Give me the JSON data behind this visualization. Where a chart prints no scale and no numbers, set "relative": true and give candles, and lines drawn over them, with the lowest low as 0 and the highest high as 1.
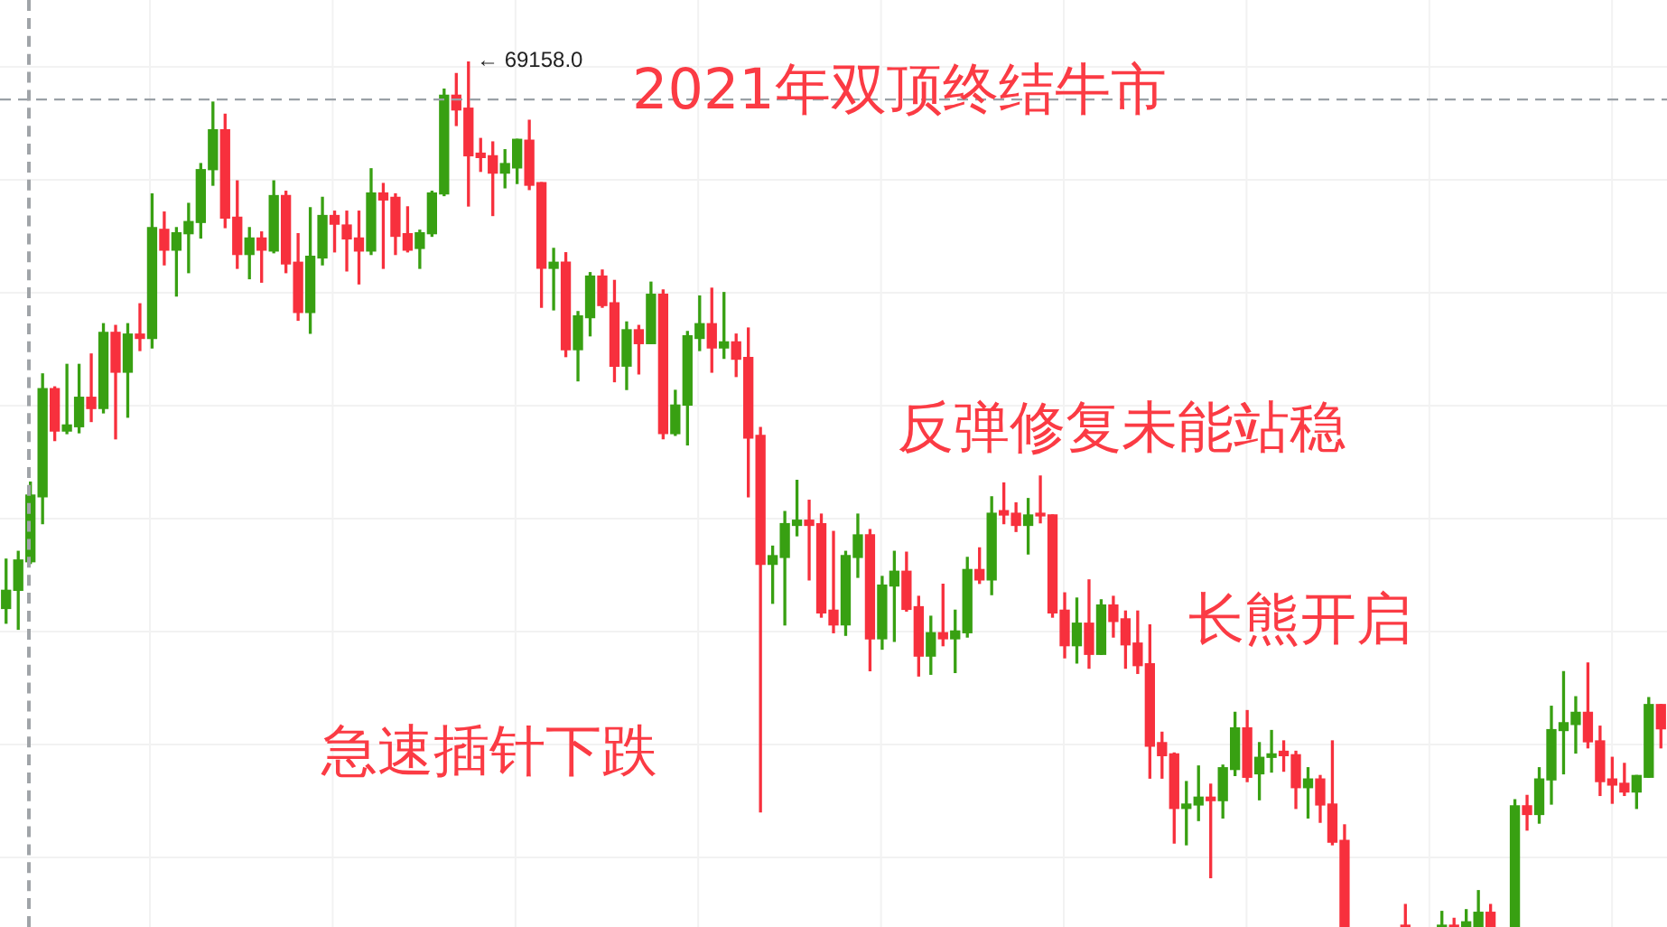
{
  "chart_data": {
    "type": "candlestick",
    "relative": true,
    "categories": [
      null,
      null,
      null,
      null,
      null,
      null,
      null,
      null,
      null,
      null,
      null,
      null,
      null,
      null,
      null,
      null,
      null,
      null,
      null,
      null,
      null,
      null,
      null,
      null,
      null,
      null,
      null,
      null,
      null,
      null,
      null,
      null,
      null,
      null,
      null,
      null,
      null,
      null,
      null,
      null,
      null,
      null,
      null,
      null,
      null,
      null,
      null,
      null,
      null,
      null,
      null,
      null,
      null,
      null,
      null,
      null,
      null,
      null,
      null,
      null,
      null,
      null,
      null,
      null,
      null,
      null,
      null,
      null,
      null,
      null,
      null,
      null,
      null,
      null,
      null,
      null,
      null,
      null,
      null,
      null,
      null,
      null,
      null,
      null,
      null,
      null,
      null,
      null,
      null,
      null,
      null,
      null,
      null,
      null,
      null,
      null,
      null,
      null,
      null,
      null,
      null,
      null,
      null,
      null,
      null,
      null,
      null,
      null,
      null,
      null,
      null,
      null,
      null,
      null,
      null,
      null,
      null,
      null,
      null,
      null,
      null,
      null,
      null,
      null,
      null,
      null,
      null,
      null,
      null,
      null,
      null,
      null,
      null,
      null,
      null,
      null,
      null
    ],
    "colors": [
      "#38a012",
      "#38a012",
      "#38a012",
      "#38a012",
      "#f7303d",
      "#38a012",
      "#38a012",
      "#f7303d",
      "#38a012",
      "#f7303d",
      "#38a012",
      "#f7303d",
      "#38a012",
      "#f7303d",
      "#38a012",
      "#38a012",
      "#38a012",
      "#38a012",
      "#f7303d",
      "#f7303d",
      "#38a012",
      "#f7303d",
      "#38a012",
      "#f7303d",
      "#f7303d",
      "#38a012",
      "#38a012",
      "#f7303d",
      "#f7303d",
      "#f7303d",
      "#38a012",
      "#f7303d",
      "#f7303d",
      "#f7303d",
      "#38a012",
      "#38a012",
      "#38a012",
      "#f7303d",
      "#f7303d",
      "#f7303d",
      "#f7303d",
      "#38a012",
      "#38a012",
      "#f7303d",
      "#f7303d",
      "#38a012",
      "#f7303d",
      "#38a012",
      "#38a012",
      "#f7303d",
      "#f7303d",
      "#38a012",
      "#f7303d",
      "#38a012",
      "#f7303d",
      "#38a012",
      "#38a012",
      "#38a012",
      "#f7303d",
      "#38a012",
      "#f7303d",
      "#f7303d",
      "#f7303d",
      "#38a012",
      "#38a012",
      "#38a012",
      "#f7303d",
      "#f7303d",
      "#f7303d",
      "#38a012",
      "#38a012",
      "#f7303d",
      "#38a012",
      "#38a012",
      "#f7303d",
      "#f7303d",
      "#38a012",
      "#f7303d",
      "#38a012",
      "#38a012",
      "#f7303d",
      "#38a012",
      "#f7303d",
      "#f7303d",
      "#38a012",
      "#f7303d",
      "#f7303d",
      "#f7303d",
      "#38a012",
      "#f7303d",
      "#38a012",
      "#f7303d",
      "#f7303d",
      "#f7303d",
      "#f7303d",
      "#f7303d",
      "#f7303d",
      "#38a012",
      "#38a012",
      "#f7303d",
      "#38a012",
      "#38a012",
      "#f7303d",
      "#38a012",
      "#38a012",
      "#f7303d",
      "#f7303d",
      "#38a012",
      "#f7303d",
      "#f7303d",
      "#f7303d",
      null,
      null,
      null,
      null,
      "#f7303d",
      null,
      null,
      "#38a012",
      "#f7303d",
      "#38a012",
      "#38a012",
      "#f7303d",
      null,
      "#38a012",
      "#f7303d",
      "#38a012",
      "#38a012",
      "#38a012",
      "#38a012",
      "#f7303d",
      "#f7303d",
      "#f7303d",
      "#f7303d",
      "#38a012",
      "#38a012",
      "#f7303d"
    ],
    "ohlc": [
      [
        0.368,
        0.425,
        0.351,
        0.389
      ],
      [
        0.389,
        0.434,
        0.344,
        0.424
      ],
      [
        0.422,
        0.514,
        0.42,
        0.499
      ],
      [
        0.497,
        0.639,
        0.466,
        0.622
      ],
      [
        0.622,
        0.624,
        0.562,
        0.573
      ],
      [
        0.573,
        0.65,
        0.57,
        0.58
      ],
      [
        0.578,
        0.65,
        0.571,
        0.612
      ],
      [
        0.612,
        0.662,
        0.584,
        0.599
      ],
      [
        0.599,
        0.697,
        0.594,
        0.687
      ],
      [
        0.687,
        0.695,
        0.564,
        0.641
      ],
      [
        0.641,
        0.697,
        0.589,
        0.685
      ],
      [
        0.685,
        0.72,
        0.666,
        0.68
      ],
      [
        0.68,
        0.847,
        0.669,
        0.808
      ],
      [
        0.806,
        0.826,
        0.765,
        0.782
      ],
      [
        0.782,
        0.808,
        0.729,
        0.802
      ],
      [
        0.801,
        0.836,
        0.756,
        0.815
      ],
      [
        0.814,
        0.882,
        0.796,
        0.875
      ],
      [
        0.875,
        0.953,
        0.857,
        0.921
      ],
      [
        0.921,
        0.939,
        0.808,
        0.819
      ],
      [
        0.82,
        0.862,
        0.761,
        0.777
      ],
      [
        0.777,
        0.808,
        0.749,
        0.796
      ],
      [
        0.796,
        0.803,
        0.745,
        0.782
      ],
      [
        0.781,
        0.862,
        0.779,
        0.845
      ],
      [
        0.845,
        0.85,
        0.756,
        0.766
      ],
      [
        0.768,
        0.801,
        0.701,
        0.71
      ],
      [
        0.71,
        0.831,
        0.686,
        0.775
      ],
      [
        0.773,
        0.843,
        0.765,
        0.822
      ],
      [
        0.822,
        0.827,
        0.78,
        0.812
      ],
      [
        0.811,
        0.827,
        0.758,
        0.795
      ],
      [
        0.796,
        0.827,
        0.743,
        0.781
      ],
      [
        0.781,
        0.876,
        0.777,
        0.848
      ],
      [
        0.848,
        0.859,
        0.761,
        0.84
      ],
      [
        0.843,
        0.847,
        0.777,
        0.798
      ],
      [
        0.801,
        0.832,
        0.78,
        0.782
      ],
      [
        0.784,
        0.805,
        0.761,
        0.802
      ],
      [
        0.801,
        0.85,
        0.798,
        0.848
      ],
      [
        0.847,
        0.968,
        0.845,
        0.961
      ],
      [
        0.961,
        0.986,
        0.926,
        0.944
      ],
      [
        0.946,
        1,
        0.833,
        0.891
      ],
      [
        0.894,
        0.911,
        0.873,
        0.889
      ],
      [
        0.891,
        0.907,
        0.822,
        0.871
      ],
      [
        0.871,
        0.898,
        0.854,
        0.882
      ],
      [
        0.877,
        0.91,
        0.859,
        0.91
      ],
      [
        0.909,
        0.932,
        0.852,
        0.857
      ],
      [
        0.86,
        0.86,
        0.716,
        0.761
      ],
      [
        0.761,
        0.784,
        0.713,
        0.768
      ],
      [
        0.768,
        0.779,
        0.659,
        0.667
      ],
      [
        0.667,
        0.711,
        0.631,
        0.706
      ],
      [
        0.704,
        0.756,
        0.683,
        0.752
      ],
      [
        0.752,
        0.759,
        0.716,
        0.718
      ],
      [
        0.721,
        0.747,
        0.63,
        0.648
      ],
      [
        0.648,
        0.699,
        0.621,
        0.69
      ],
      [
        0.69,
        0.695,
        0.639,
        0.674
      ],
      [
        0.674,
        0.745,
        0.674,
        0.731
      ],
      [
        0.731,
        0.736,
        0.564,
        0.57
      ],
      [
        0.57,
        0.62,
        0.568,
        0.603
      ],
      [
        0.603,
        0.688,
        0.557,
        0.683
      ],
      [
        0.68,
        0.729,
        0.666,
        0.697
      ],
      [
        0.697,
        0.738,
        0.641,
        0.669
      ],
      [
        0.669,
        0.733,
        0.657,
        0.676
      ],
      [
        0.676,
        0.685,
        0.636,
        0.656
      ],
      [
        0.658,
        0.692,
        0.497,
        0.565
      ],
      [
        0.568,
        0.577,
        0.133,
        0.419
      ],
      [
        0.419,
        0.44,
        0.374,
        0.429
      ],
      [
        0.427,
        0.48,
        0.349,
        0.466
      ],
      [
        0.464,
        0.516,
        0.452,
        0.47
      ],
      [
        0.47,
        0.493,
        0.401,
        0.464
      ],
      [
        0.466,
        0.477,
        0.358,
        0.363
      ],
      [
        0.366,
        0.457,
        0.34,
        0.349
      ],
      [
        0.349,
        0.434,
        0.337,
        0.429
      ],
      [
        0.427,
        0.477,
        0.404,
        0.453
      ],
      [
        0.453,
        0.459,
        0.296,
        0.333
      ],
      [
        0.333,
        0.405,
        0.321,
        0.395
      ],
      [
        0.394,
        0.434,
        0.33,
        0.411
      ],
      [
        0.411,
        0.433,
        0.365,
        0.367
      ],
      [
        0.37,
        0.382,
        0.29,
        0.313
      ],
      [
        0.313,
        0.359,
        0.292,
        0.34
      ],
      [
        0.34,
        0.396,
        0.325,
        0.333
      ],
      [
        0.333,
        0.366,
        0.294,
        0.342
      ],
      [
        0.34,
        0.427,
        0.335,
        0.413
      ],
      [
        0.413,
        0.438,
        0.397,
        0.401
      ],
      [
        0.401,
        0.497,
        0.384,
        0.478
      ],
      [
        0.481,
        0.513,
        0.466,
        0.476
      ],
      [
        0.478,
        0.49,
        0.457,
        0.464
      ],
      [
        0.464,
        0.495,
        0.431,
        0.476
      ],
      [
        0.478,
        0.521,
        0.467,
        0.475
      ],
      [
        0.476,
        0.476,
        0.358,
        0.363
      ],
      [
        0.366,
        0.386,
        0.311,
        0.325
      ],
      [
        0.325,
        0.38,
        0.305,
        0.351
      ],
      [
        0.351,
        0.401,
        0.299,
        0.315
      ],
      [
        0.315,
        0.378,
        0.315,
        0.372
      ],
      [
        0.372,
        0.382,
        0.335,
        0.353
      ],
      [
        0.356,
        0.365,
        0.299,
        0.326
      ],
      [
        0.328,
        0.365,
        0.293,
        0.302
      ],
      [
        0.304,
        0.349,
        0.172,
        0.209
      ],
      [
        0.213,
        0.225,
        0.172,
        0.198
      ],
      [
        0.2,
        0.201,
        0.097,
        0.137
      ],
      [
        0.137,
        0.168,
        0.095,
        0.142
      ],
      [
        0.141,
        0.186,
        0.123,
        0.15
      ],
      [
        0.15,
        0.165,
        0.057,
        0.146
      ],
      [
        0.146,
        0.187,
        0.126,
        0.184
      ],
      [
        0.182,
        0.248,
        0.175,
        0.23
      ],
      [
        0.23,
        0.25,
        0.168,
        0.173
      ],
      [
        0.177,
        0.213,
        0.147,
        0.196
      ],
      [
        0.196,
        0.227,
        0.179,
        0.2
      ],
      [
        0.203,
        0.215,
        0.18,
        0.198
      ],
      [
        0.199,
        0.203,
        0.137,
        0.161
      ],
      [
        0.161,
        0.184,
        0.126,
        0.171
      ],
      [
        0.171,
        0.175,
        0.121,
        0.141
      ],
      [
        0.142,
        0.215,
        0.095,
        0.098
      ],
      [
        0.1,
        0.118,
        0,
        0
      ],
      null,
      null,
      null,
      null,
      [
        0,
        0.026,
        0,
        0
      ],
      null,
      null,
      [
        0,
        0.018,
        0,
        0
      ],
      [
        0,
        0.01,
        0,
        0
      ],
      [
        0,
        0.02,
        0,
        0.006
      ],
      [
        0,
        0.042,
        0,
        0.017
      ],
      [
        0.017,
        0.026,
        0,
        0
      ],
      null,
      [
        0,
        0.147,
        0,
        0.14
      ],
      [
        0.14,
        0.152,
        0.112,
        0.13
      ],
      [
        0.13,
        0.184,
        0.12,
        0.171
      ],
      [
        0.17,
        0.255,
        0.142,
        0.228
      ],
      [
        0.227,
        0.295,
        0.177,
        0.236
      ],
      [
        0.234,
        0.266,
        0.201,
        0.248
      ],
      [
        0.248,
        0.305,
        0.207,
        0.214
      ],
      [
        0.215,
        0.232,
        0.152,
        0.168
      ],
      [
        0.171,
        0.196,
        0.143,
        0.164
      ],
      [
        0.166,
        0.189,
        0.152,
        0.156
      ],
      [
        0.156,
        0.175,
        0.137,
        0.175
      ],
      [
        0.173,
        0.265,
        0.173,
        0.257
      ],
      [
        0.257,
        0.257,
        0.207,
        0.229
      ]
    ],
    "ref_lines": [
      {
        "axis": "y",
        "value": 0.956,
        "color": "#9aa0a6",
        "line_style": "dashed"
      }
    ],
    "grid": true,
    "annotations": [
      "← 69158.0",
      "2021年双顶终结牛市",
      "反弹修复未能站稳",
      "长熊开启",
      "急速插针下跌"
    ]
  }
}
